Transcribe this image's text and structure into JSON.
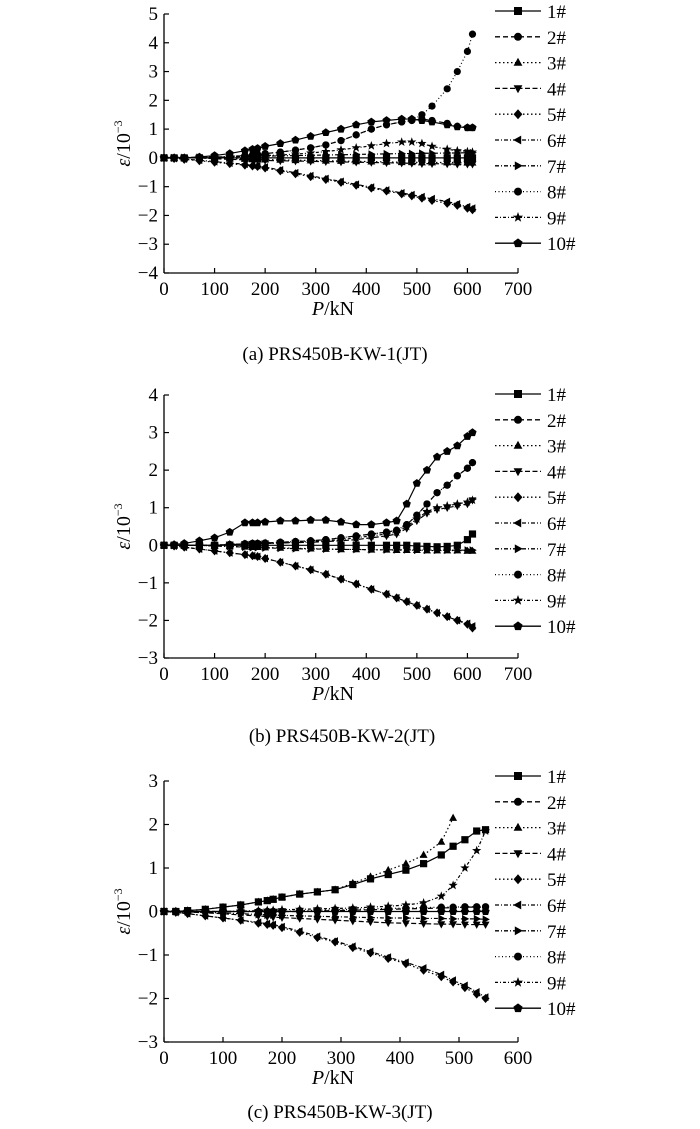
{
  "chart_data": [
    {
      "type": "line",
      "caption": "(a) PRS450B-KW-1(JT)",
      "xlabel_var": "P",
      "xlabel_unit": "/kN",
      "ylabel_var": "ε",
      "ylabel_unit": "/10",
      "ylabel_exp": "−3",
      "xlim": [
        0,
        700
      ],
      "ylim": [
        -4,
        5
      ],
      "xticks": [
        "0",
        "100",
        "200",
        "300",
        "400",
        "500",
        "600",
        "700"
      ],
      "yticks": [
        "−4",
        "−3",
        "−2",
        "−1",
        "0",
        "1",
        "2",
        "3",
        "4",
        "5"
      ],
      "grid": false,
      "legend_position": "right",
      "x": [
        0,
        20,
        40,
        70,
        100,
        130,
        160,
        175,
        185,
        200,
        230,
        260,
        290,
        320,
        350,
        380,
        410,
        440,
        470,
        490,
        510,
        530,
        560,
        580,
        600,
        610
      ],
      "series": [
        {
          "name": "1#",
          "values": [
            0,
            0,
            0,
            0,
            0,
            0,
            0,
            0,
            0,
            0,
            0,
            0,
            0,
            0,
            0,
            0,
            0,
            0,
            0,
            0,
            0,
            0,
            0,
            0,
            0,
            0
          ]
        },
        {
          "name": "2#",
          "values": [
            0,
            0,
            0,
            0,
            0,
            0.05,
            0.08,
            0.1,
            0.12,
            0.15,
            0.2,
            0.27,
            0.35,
            0.45,
            0.6,
            0.8,
            1.0,
            1.15,
            1.25,
            1.3,
            1.35,
            1.3,
            1.2,
            1.1,
            1.05,
            1.05
          ]
        },
        {
          "name": "3#",
          "values": [
            0,
            0,
            0,
            0,
            -0.02,
            -0.03,
            -0.04,
            -0.05,
            -0.05,
            -0.06,
            -0.07,
            -0.08,
            -0.09,
            -0.1,
            -0.11,
            -0.12,
            -0.13,
            -0.14,
            -0.15,
            -0.15,
            -0.16,
            -0.16,
            -0.16,
            -0.16,
            -0.17,
            -0.17
          ]
        },
        {
          "name": "4#",
          "values": [
            0,
            0,
            0,
            0,
            -0.03,
            -0.05,
            -0.07,
            -0.08,
            -0.08,
            -0.09,
            -0.1,
            -0.11,
            -0.12,
            -0.13,
            -0.14,
            -0.15,
            -0.16,
            -0.17,
            -0.18,
            -0.19,
            -0.2,
            -0.2,
            -0.21,
            -0.22,
            -0.22,
            -0.22
          ]
        },
        {
          "name": "5#",
          "values": [
            0,
            -0.02,
            -0.05,
            -0.1,
            -0.15,
            -0.2,
            -0.25,
            -0.28,
            -0.3,
            -0.35,
            -0.45,
            -0.55,
            -0.65,
            -0.75,
            -0.85,
            -0.95,
            -1.05,
            -1.15,
            -1.25,
            -1.32,
            -1.4,
            -1.48,
            -1.58,
            -1.65,
            -1.75,
            -1.8
          ]
        },
        {
          "name": "6#",
          "values": [
            0,
            -0.02,
            -0.04,
            -0.08,
            -0.13,
            -0.18,
            -0.22,
            -0.25,
            -0.27,
            -0.32,
            -0.42,
            -0.52,
            -0.62,
            -0.72,
            -0.82,
            -0.92,
            -1.02,
            -1.12,
            -1.22,
            -1.28,
            -1.35,
            -1.42,
            -1.52,
            -1.6,
            -1.7,
            -1.75
          ]
        },
        {
          "name": "7#",
          "values": [
            0,
            0,
            0.01,
            0.02,
            0.03,
            0.04,
            0.05,
            0.05,
            0.06,
            0.06,
            0.07,
            0.08,
            0.09,
            0.1,
            0.11,
            0.12,
            0.13,
            0.14,
            0.15,
            0.15,
            0.16,
            0.16,
            0.17,
            0.17,
            0.18,
            0.18
          ]
        },
        {
          "name": "8#",
          "values": [
            0,
            0,
            0,
            0,
            0,
            0.05,
            0.08,
            0.1,
            0.12,
            0.15,
            0.2,
            0.27,
            0.35,
            0.45,
            0.6,
            0.8,
            1.0,
            1.15,
            1.25,
            1.3,
            1.5,
            1.8,
            2.4,
            3.0,
            3.7,
            4.3
          ]
        },
        {
          "name": "9#",
          "values": [
            0,
            0,
            0,
            0,
            0,
            0.03,
            0.05,
            0.06,
            0.07,
            0.08,
            0.1,
            0.13,
            0.17,
            0.22,
            0.28,
            0.35,
            0.42,
            0.5,
            0.55,
            0.55,
            0.5,
            0.4,
            0.3,
            0.25,
            0.22,
            0.2
          ]
        },
        {
          "name": "10#",
          "values": [
            0,
            0,
            0,
            0.03,
            0.08,
            0.15,
            0.25,
            0.3,
            0.33,
            0.4,
            0.5,
            0.62,
            0.75,
            0.88,
            1.0,
            1.15,
            1.25,
            1.3,
            1.35,
            1.35,
            1.3,
            1.25,
            1.15,
            1.08,
            1.05,
            1.05
          ]
        }
      ]
    },
    {
      "type": "line",
      "caption": "(b) PRS450B-KW-2(JT)",
      "xlabel_var": "P",
      "xlabel_unit": "/kN",
      "ylabel_var": "ε",
      "ylabel_unit": "/10",
      "ylabel_exp": "−3",
      "xlim": [
        0,
        700
      ],
      "ylim": [
        -3,
        4
      ],
      "xticks": [
        "0",
        "100",
        "200",
        "300",
        "400",
        "500",
        "600",
        "700"
      ],
      "yticks": [
        "−3",
        "−2",
        "−1",
        "0",
        "1",
        "2",
        "3",
        "4"
      ],
      "grid": false,
      "legend_position": "right",
      "x": [
        0,
        20,
        40,
        70,
        100,
        130,
        160,
        175,
        185,
        200,
        230,
        260,
        290,
        320,
        350,
        380,
        410,
        440,
        460,
        480,
        500,
        520,
        540,
        560,
        580,
        600,
        610
      ],
      "series": [
        {
          "name": "1#",
          "values": [
            0,
            0,
            0,
            0,
            0,
            0,
            0,
            0,
            0,
            0,
            0,
            0,
            0,
            0,
            0,
            0,
            0,
            0,
            0,
            0,
            -0.02,
            -0.03,
            -0.04,
            -0.03,
            0,
            0.15,
            0.3
          ]
        },
        {
          "name": "2#",
          "values": [
            0,
            0,
            0,
            0,
            0,
            0.02,
            0.04,
            0.05,
            0.05,
            0.06,
            0.08,
            0.1,
            0.12,
            0.15,
            0.2,
            0.25,
            0.3,
            0.35,
            0.4,
            0.55,
            0.8,
            1.1,
            1.4,
            1.6,
            1.85,
            2.05,
            2.2
          ]
        },
        {
          "name": "3#",
          "values": [
            0,
            0,
            0,
            0,
            -0.02,
            -0.03,
            -0.04,
            -0.05,
            -0.05,
            -0.06,
            -0.07,
            -0.08,
            -0.09,
            -0.1,
            -0.11,
            -0.11,
            -0.12,
            -0.12,
            -0.13,
            -0.13,
            -0.13,
            -0.14,
            -0.14,
            -0.14,
            -0.14,
            -0.15,
            -0.15
          ]
        },
        {
          "name": "4#",
          "values": [
            0,
            0,
            0,
            0,
            0,
            0.02,
            0.03,
            0.04,
            0.04,
            0.05,
            0.06,
            0.07,
            0.08,
            0.1,
            0.12,
            0.15,
            0.2,
            0.25,
            0.3,
            0.45,
            0.65,
            0.85,
            0.95,
            1.0,
            1.05,
            1.1,
            1.2
          ]
        },
        {
          "name": "5#",
          "values": [
            0,
            -0.02,
            -0.05,
            -0.1,
            -0.15,
            -0.2,
            -0.25,
            -0.28,
            -0.3,
            -0.35,
            -0.45,
            -0.55,
            -0.65,
            -0.77,
            -0.9,
            -1.03,
            -1.17,
            -1.3,
            -1.4,
            -1.5,
            -1.6,
            -1.7,
            -1.8,
            -1.9,
            -2.0,
            -2.1,
            -2.2
          ]
        },
        {
          "name": "6#",
          "values": [
            0,
            -0.02,
            -0.05,
            -0.1,
            -0.15,
            -0.2,
            -0.25,
            -0.28,
            -0.3,
            -0.35,
            -0.45,
            -0.55,
            -0.65,
            -0.77,
            -0.9,
            -1.03,
            -1.17,
            -1.3,
            -1.4,
            -1.5,
            -1.6,
            -1.7,
            -1.8,
            -1.9,
            -2.0,
            -2.08,
            -2.15
          ]
        },
        {
          "name": "7#",
          "values": [
            0,
            0,
            0,
            0,
            -0.02,
            -0.03,
            -0.05,
            -0.06,
            -0.06,
            -0.07,
            -0.08,
            -0.09,
            -0.1,
            -0.1,
            -0.11,
            -0.11,
            -0.12,
            -0.12,
            -0.12,
            -0.12,
            -0.13,
            -0.13,
            -0.13,
            -0.13,
            -0.13,
            -0.13,
            -0.13
          ]
        },
        {
          "name": "8#",
          "values": [
            0,
            0,
            0,
            0,
            0,
            0.02,
            0.04,
            0.05,
            0.05,
            0.06,
            0.08,
            0.1,
            0.12,
            0.15,
            0.2,
            0.25,
            0.3,
            0.35,
            0.4,
            0.55,
            0.8,
            1.1,
            1.4,
            1.6,
            1.85,
            2.05,
            2.2
          ]
        },
        {
          "name": "9#",
          "values": [
            0,
            0,
            0,
            0,
            0,
            0.02,
            0.03,
            0.04,
            0.04,
            0.05,
            0.06,
            0.08,
            0.1,
            0.12,
            0.15,
            0.2,
            0.25,
            0.3,
            0.35,
            0.5,
            0.7,
            0.9,
            1.0,
            1.05,
            1.1,
            1.15,
            1.2
          ]
        },
        {
          "name": "10#",
          "values": [
            0,
            0.02,
            0.05,
            0.12,
            0.2,
            0.35,
            0.6,
            0.6,
            0.6,
            0.62,
            0.65,
            0.65,
            0.67,
            0.67,
            0.62,
            0.55,
            0.55,
            0.6,
            0.65,
            1.1,
            1.65,
            2.0,
            2.35,
            2.5,
            2.65,
            2.9,
            3.0
          ]
        }
      ]
    },
    {
      "type": "line",
      "caption": "(c) PRS450B-KW-3(JT)",
      "xlabel_var": "P",
      "xlabel_unit": "/kN",
      "ylabel_var": "ε",
      "ylabel_unit": "/10",
      "ylabel_exp": "−3",
      "xlim": [
        0,
        600
      ],
      "ylim": [
        -3,
        3
      ],
      "xticks": [
        "0",
        "100",
        "200",
        "300",
        "400",
        "500",
        "600"
      ],
      "yticks": [
        "−3",
        "−2",
        "−1",
        "0",
        "1",
        "2",
        "3"
      ],
      "grid": false,
      "legend_position": "right",
      "x": [
        0,
        20,
        40,
        70,
        100,
        130,
        160,
        175,
        185,
        200,
        230,
        260,
        290,
        320,
        350,
        380,
        410,
        440,
        470,
        490,
        510,
        530,
        545
      ],
      "series": [
        {
          "name": "1#",
          "values": [
            0,
            0,
            0.02,
            0.05,
            0.1,
            0.15,
            0.22,
            0.25,
            0.28,
            0.33,
            0.4,
            0.45,
            0.5,
            0.62,
            0.75,
            0.85,
            0.95,
            1.1,
            1.3,
            1.5,
            1.65,
            1.85,
            1.88
          ]
        },
        {
          "name": "2#",
          "values": [
            0,
            0,
            0,
            0,
            0,
            0,
            0,
            0,
            0,
            0,
            0,
            0.01,
            0.02,
            0.03,
            0.04,
            0.05,
            0.06,
            0.07,
            0.08,
            0.09,
            0.1,
            0.1,
            0.1
          ]
        },
        {
          "name": "3#",
          "values": [
            0,
            0,
            0.02,
            0.05,
            0.1,
            0.15,
            0.22,
            0.25,
            0.28,
            0.33,
            0.4,
            0.45,
            0.5,
            0.65,
            0.8,
            0.95,
            1.1,
            1.3,
            1.6,
            2.15,
            null,
            null,
            null
          ]
        },
        {
          "name": "4#",
          "values": [
            0,
            0,
            -0.01,
            -0.03,
            -0.05,
            -0.08,
            -0.1,
            -0.12,
            -0.13,
            -0.14,
            -0.16,
            -0.18,
            -0.2,
            -0.22,
            -0.24,
            -0.26,
            -0.27,
            -0.28,
            -0.29,
            -0.29,
            -0.3,
            -0.3,
            -0.3
          ]
        },
        {
          "name": "5#",
          "values": [
            0,
            -0.02,
            -0.05,
            -0.1,
            -0.15,
            -0.2,
            -0.27,
            -0.3,
            -0.32,
            -0.37,
            -0.48,
            -0.6,
            -0.7,
            -0.83,
            -0.95,
            -1.08,
            -1.2,
            -1.35,
            -1.5,
            -1.62,
            -1.75,
            -1.9,
            -2.0
          ]
        },
        {
          "name": "6#",
          "values": [
            0,
            -0.02,
            -0.05,
            -0.1,
            -0.15,
            -0.2,
            -0.25,
            -0.28,
            -0.3,
            -0.35,
            -0.45,
            -0.57,
            -0.68,
            -0.8,
            -0.92,
            -1.05,
            -1.17,
            -1.3,
            -1.45,
            -1.58,
            -1.7,
            -1.85,
            -1.97
          ]
        },
        {
          "name": "7#",
          "values": [
            0,
            0,
            -0.01,
            -0.02,
            -0.03,
            -0.05,
            -0.07,
            -0.08,
            -0.08,
            -0.09,
            -0.1,
            -0.11,
            -0.12,
            -0.13,
            -0.14,
            -0.15,
            -0.15,
            -0.16,
            -0.16,
            -0.17,
            -0.17,
            -0.17,
            -0.18
          ]
        },
        {
          "name": "8#",
          "values": [
            0,
            0,
            0,
            0,
            0,
            0,
            0,
            0,
            0,
            0,
            0.02,
            0.03,
            0.04,
            0.05,
            0.06,
            0.07,
            0.08,
            0.09,
            0.1,
            0.1,
            0.11,
            0.11,
            0.11
          ]
        },
        {
          "name": "9#",
          "values": [
            0,
            0,
            0,
            0,
            0,
            0.01,
            0.02,
            0.03,
            0.03,
            0.04,
            0.05,
            0.06,
            0.07,
            0.08,
            0.1,
            0.12,
            0.15,
            0.2,
            0.35,
            0.6,
            1.0,
            1.4,
            1.85
          ]
        },
        {
          "name": "10#",
          "values": [
            0,
            0,
            0,
            0,
            0,
            0,
            0,
            0,
            0,
            0,
            0,
            0,
            0,
            0,
            0,
            0,
            0,
            0,
            0,
            0,
            0,
            0,
            0
          ]
        }
      ]
    }
  ]
}
